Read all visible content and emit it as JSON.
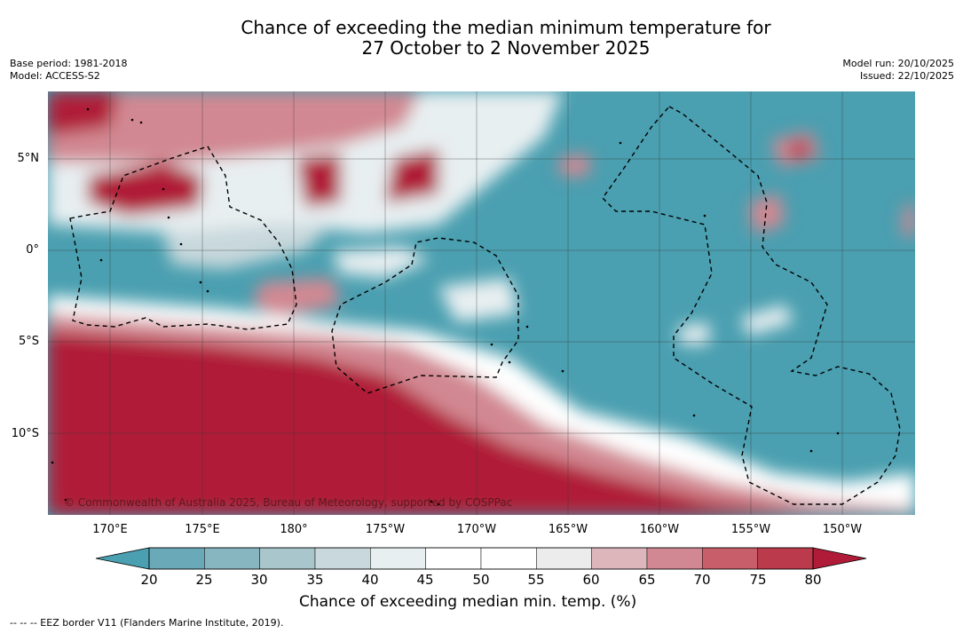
{
  "title_line1": "Chance of exceeding the median minimum temperature for",
  "title_line2": "27 October to 2 November 2025",
  "meta": {
    "base_period": "Base period: 1981-2018",
    "model": "Model: ACCESS-S2",
    "model_run": "Model run: 20/10/2025",
    "issued": "Issued: 22/10/2025"
  },
  "lat_labels": [
    "5°N",
    "0°",
    "5°S",
    "10°S"
  ],
  "lon_labels": [
    "170°E",
    "175°E",
    "180°",
    "175°W",
    "170°W",
    "165°W",
    "160°W",
    "155°W",
    "150°W"
  ],
  "copyright": "© Commonwealth of Australia 2025, Bureau of Meteorology, supported by COSPPac",
  "colorbar": {
    "ticks": [
      "20",
      "25",
      "30",
      "35",
      "40",
      "45",
      "50",
      "55",
      "60",
      "65",
      "70",
      "75",
      "80"
    ],
    "colors": [
      "#4a9fb0",
      "#69a9b8",
      "#87b6c0",
      "#a8c6cb",
      "#c8d8dc",
      "#e8eff1",
      "#ffffff",
      "#ffffff",
      "#ececec",
      "#ddb6bc",
      "#d28892",
      "#c75e6a",
      "#bb3a4b",
      "#b01c38"
    ],
    "label": "Chance of exceeding median min. temp. (%)"
  },
  "footer": "--  --  -- EEZ border V11 (Flanders Marine Institute, 2019)."
}
